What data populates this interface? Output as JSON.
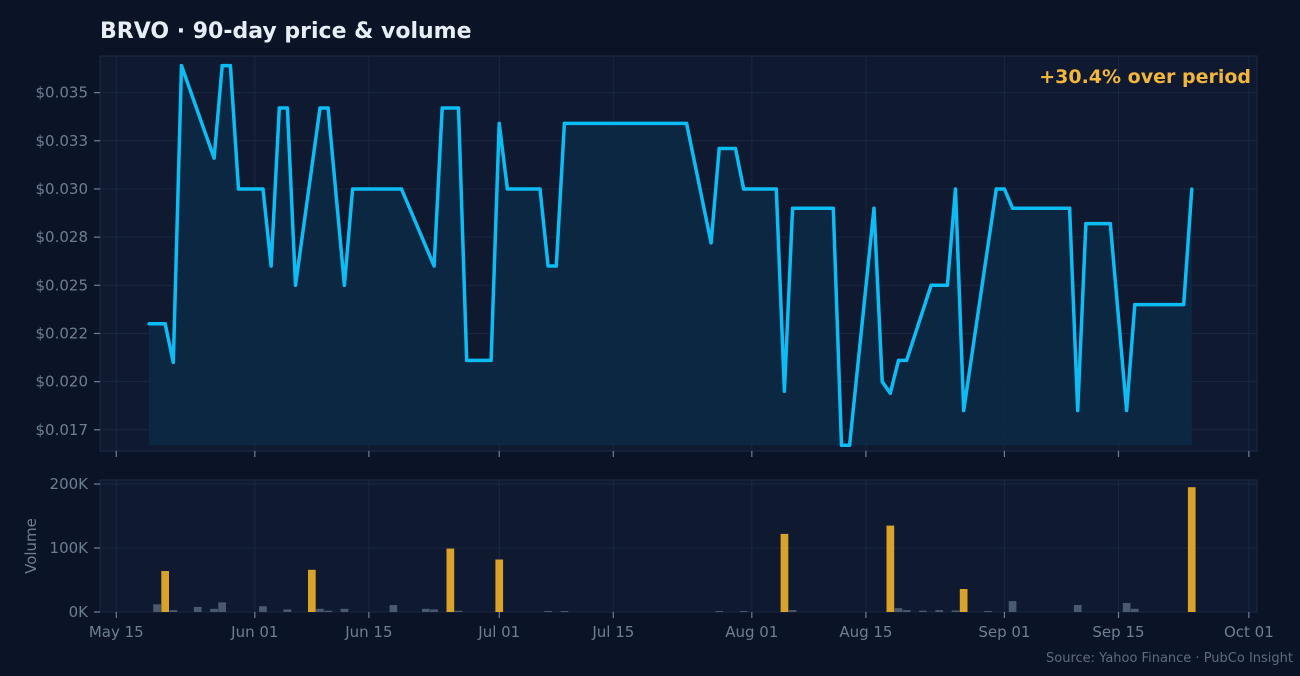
{
  "chart_data": {
    "type": "line",
    "title": "BRVO  ·  90-day price & volume",
    "annotation": "+30.4% over period",
    "source": "Source: Yahoo Finance · PubCo Insight",
    "colors": {
      "background": "#0b1426",
      "panel": "#0f1a30",
      "price_line": "#0bbcf5",
      "price_fill": "#0c2a44",
      "volume_high": "#d9a22a",
      "volume_low": "#4a5870",
      "grid": "#1a2740",
      "annotation": "#f2b63c"
    },
    "price_panel": {
      "y_tick_values": [
        0.0175,
        0.02,
        0.0225,
        0.025,
        0.0275,
        0.03,
        0.0325,
        0.035
      ],
      "y_tick_labels": [
        "$0.017",
        "$0.020",
        "$0.022",
        "$0.025",
        "$0.028",
        "$0.030",
        "$0.033",
        "$0.035"
      ],
      "ylim": [
        0.0164,
        0.0369
      ],
      "grid": true
    },
    "volume_panel": {
      "ylabel": "Volume",
      "y_tick_values": [
        0,
        100000,
        200000
      ],
      "y_tick_labels": [
        "0K",
        "100K",
        "200K"
      ],
      "ylim": [
        0,
        200000
      ],
      "grid": true
    },
    "x_axis": {
      "start": "2025-05-13",
      "end": "2025-10-02",
      "tick_dates": [
        "2025-05-15",
        "2025-06-01",
        "2025-06-15",
        "2025-07-01",
        "2025-07-15",
        "2025-08-01",
        "2025-08-15",
        "2025-09-01",
        "2025-09-15",
        "2025-10-01"
      ],
      "tick_labels": [
        "May 15",
        "Jun 01",
        "Jun 15",
        "Jul 01",
        "Jul 15",
        "Aug 01",
        "Aug 15",
        "Sep 01",
        "Sep 15",
        "Oct 01"
      ]
    },
    "price_series": {
      "name": "Close",
      "points": [
        [
          "2025-05-19",
          0.023
        ],
        [
          "2025-05-21",
          0.023
        ],
        [
          "2025-05-22",
          0.021
        ],
        [
          "2025-05-23",
          0.0364
        ],
        [
          "2025-05-27",
          0.0316
        ],
        [
          "2025-05-28",
          0.0364
        ],
        [
          "2025-05-29",
          0.0364
        ],
        [
          "2025-05-30",
          0.03
        ],
        [
          "2025-06-02",
          0.03
        ],
        [
          "2025-06-03",
          0.026
        ],
        [
          "2025-06-04",
          0.0342
        ],
        [
          "2025-06-05",
          0.0342
        ],
        [
          "2025-06-06",
          0.025
        ],
        [
          "2025-06-09",
          0.0342
        ],
        [
          "2025-06-10",
          0.0342
        ],
        [
          "2025-06-12",
          0.025
        ],
        [
          "2025-06-13",
          0.03
        ],
        [
          "2025-06-19",
          0.03
        ],
        [
          "2025-06-23",
          0.026
        ],
        [
          "2025-06-24",
          0.0342
        ],
        [
          "2025-06-26",
          0.0342
        ],
        [
          "2025-06-27",
          0.0211
        ],
        [
          "2025-06-30",
          0.0211
        ],
        [
          "2025-07-01",
          0.0334
        ],
        [
          "2025-07-02",
          0.03
        ],
        [
          "2025-07-06",
          0.03
        ],
        [
          "2025-07-07",
          0.026
        ],
        [
          "2025-07-08",
          0.026
        ],
        [
          "2025-07-09",
          0.0334
        ],
        [
          "2025-07-24",
          0.0334
        ],
        [
          "2025-07-27",
          0.0272
        ],
        [
          "2025-07-28",
          0.0321
        ],
        [
          "2025-07-30",
          0.0321
        ],
        [
          "2025-07-31",
          0.03
        ],
        [
          "2025-08-04",
          0.03
        ],
        [
          "2025-08-05",
          0.0195
        ],
        [
          "2025-08-06",
          0.029
        ],
        [
          "2025-08-11",
          0.029
        ],
        [
          "2025-08-12",
          0.0167
        ],
        [
          "2025-08-13",
          0.0167
        ],
        [
          "2025-08-16",
          0.029
        ],
        [
          "2025-08-17",
          0.02
        ],
        [
          "2025-08-18",
          0.0194
        ],
        [
          "2025-08-19",
          0.0211
        ],
        [
          "2025-08-20",
          0.0211
        ],
        [
          "2025-08-23",
          0.025
        ],
        [
          "2025-08-25",
          0.025
        ],
        [
          "2025-08-26",
          0.03
        ],
        [
          "2025-08-27",
          0.0185
        ],
        [
          "2025-08-31",
          0.03
        ],
        [
          "2025-09-01",
          0.03
        ],
        [
          "2025-09-02",
          0.029
        ],
        [
          "2025-09-09",
          0.029
        ],
        [
          "2025-09-10",
          0.0185
        ],
        [
          "2025-09-11",
          0.0282
        ],
        [
          "2025-09-14",
          0.0282
        ],
        [
          "2025-09-16",
          0.0185
        ],
        [
          "2025-09-17",
          0.024
        ],
        [
          "2025-09-23",
          0.024
        ],
        [
          "2025-09-24",
          0.03
        ]
      ]
    },
    "volume_series": {
      "name": "Volume",
      "bars": [
        [
          "2025-05-20",
          12000,
          "low"
        ],
        [
          "2025-05-21",
          64000,
          "high"
        ],
        [
          "2025-05-22",
          3000,
          "low"
        ],
        [
          "2025-05-25",
          8000,
          "low"
        ],
        [
          "2025-05-27",
          5000,
          "low"
        ],
        [
          "2025-05-28",
          15000,
          "low"
        ],
        [
          "2025-06-02",
          9000,
          "low"
        ],
        [
          "2025-06-05",
          4000,
          "low"
        ],
        [
          "2025-06-08",
          66000,
          "high"
        ],
        [
          "2025-06-09",
          5000,
          "low"
        ],
        [
          "2025-06-10",
          2000,
          "low"
        ],
        [
          "2025-06-12",
          5000,
          "low"
        ],
        [
          "2025-06-18",
          11000,
          "low"
        ],
        [
          "2025-06-22",
          5000,
          "low"
        ],
        [
          "2025-06-23",
          4000,
          "low"
        ],
        [
          "2025-06-25",
          99000,
          "high"
        ],
        [
          "2025-06-26",
          2000,
          "low"
        ],
        [
          "2025-07-01",
          82000,
          "high"
        ],
        [
          "2025-07-07",
          1500,
          "low"
        ],
        [
          "2025-07-09",
          1500,
          "low"
        ],
        [
          "2025-07-28",
          1500,
          "low"
        ],
        [
          "2025-07-31",
          1500,
          "low"
        ],
        [
          "2025-08-05",
          122000,
          "high"
        ],
        [
          "2025-08-06",
          3000,
          "low"
        ],
        [
          "2025-08-18",
          135000,
          "high"
        ],
        [
          "2025-08-19",
          6000,
          "low"
        ],
        [
          "2025-08-20",
          3000,
          "low"
        ],
        [
          "2025-08-22",
          2000,
          "low"
        ],
        [
          "2025-08-24",
          3000,
          "low"
        ],
        [
          "2025-08-26",
          2500,
          "low"
        ],
        [
          "2025-08-27",
          36000,
          "high"
        ],
        [
          "2025-08-30",
          1500,
          "low"
        ],
        [
          "2025-09-02",
          17000,
          "low"
        ],
        [
          "2025-09-10",
          11000,
          "low"
        ],
        [
          "2025-09-16",
          14000,
          "low"
        ],
        [
          "2025-09-17",
          5000,
          "low"
        ],
        [
          "2025-09-24",
          195000,
          "high"
        ]
      ]
    }
  }
}
